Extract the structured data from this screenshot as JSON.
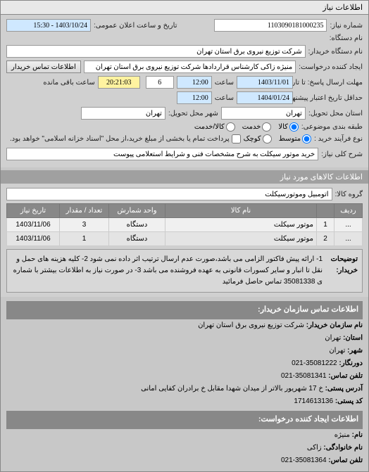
{
  "tab": {
    "title": "اطلاعات نیاز"
  },
  "form": {
    "request_no_label": "شماره نیاز:",
    "request_no": "1103090181000235",
    "announce_label": "تاریخ و ساعت اعلان عمومی:",
    "announce_value": "1403/10/24 - 15:30",
    "device_name_label": "نام دستگاه:",
    "buyer_name_label": "نام دستگاه خریدار:",
    "buyer_name": "شرکت توزیع نیروی برق استان تهران",
    "requester_label": "ایجاد کننده درخواست:",
    "requester": "منیژه زاکی کارشناس قراردادها شرکت توزیع نیروی برق استان تهران",
    "buyer_contact_btn": "اطلاعات تماس خریدار",
    "deadline_recv_label": "مهلت ارسال پاسخ: تا تاریخ:",
    "deadline_recv_date": "1403/11/01",
    "time_label": "ساعت",
    "deadline_recv_time": "12:00",
    "days_label": "",
    "days_value": "6",
    "remain_label": "ساعت باقی مانده",
    "remain_time": "20:21:03",
    "validity_label": "حداقل تاریخ اعتبار پیشنهاد: تا تاریخ:",
    "validity_date": "1404/01/24",
    "validity_time": "12:00",
    "delivery_state_label": "استان محل تحویل:",
    "delivery_state": "تهران",
    "delivery_city_label": "شهر محل تحویل:",
    "delivery_city": "تهران",
    "package_label": "طبقه بندی موضوعی:",
    "package_opts": {
      "goods": "کالا",
      "service": "خدمت",
      "both": "کالا/خدمت"
    },
    "payment_label": "نوع فرآیند خرید :",
    "payment_opts": {
      "mid": "متوسط",
      "small": "کوچک"
    },
    "payment_note_checkbox": "پرداخت تمام یا بخشی از مبلغ خرید،از محل \"اسناد خزانه اسلامی\" خواهد بود.",
    "need_title_label": "شرح کلی نیاز:",
    "need_title": "خرید موتور سیکلت به شرح مشخصات فنی و شرایط استعلامی پیوست"
  },
  "goods_section": {
    "title": "اطلاعات کالاهای مورد نیاز",
    "group_label": "گروه کالا:",
    "group_value": "اتومبیل وموتورسیکلت"
  },
  "goods_table": {
    "headers": {
      "row": "ردیف",
      "name": "نام کالا",
      "unit": "واحد شمارش",
      "qty": "تعداد / مقدار",
      "date": "تاریخ نیاز"
    },
    "rows": [
      {
        "row": "...",
        "seq": "1",
        "name": "موتور سیکلت",
        "unit": "دستگاه",
        "qty": "3",
        "date": "1403/11/06"
      },
      {
        "row": "...",
        "seq": "2",
        "name": "موتور سیکلت",
        "unit": "دستگاه",
        "qty": "1",
        "date": "1403/11/06"
      }
    ]
  },
  "buyer_desc": {
    "label": "توضیحات خریدار:",
    "text": "1- ارائه پیش فاکتور الزامی می باشد،صورت عدم ارسال ترتیب اثر داده نمی شود 2- کلیه هزینه های حمل و نقل تا انبار و سایر کسورات قانونی به عهده فروشنده می باشد 3- در صورت نیاز به اطلاعات بیشتر با شماره ی 35081338 تماس حاصل فرمائید"
  },
  "contact": {
    "section_title": "اطلاعات تماس سازمان خریدار:",
    "org_label": "نام سازمان خریدار:",
    "org": "شرکت توزیع نیروی برق استان تهران",
    "state_label": "استان:",
    "state": "تهران",
    "city_label": "شهر:",
    "city": "تهران",
    "fax_label": "دورنگار:",
    "fax": "35081222-021",
    "phone_label": "تلفن تماس:",
    "phone": "35081341-021",
    "address_label": "آدرس پستی:",
    "address": "خ 17 شهریور بالاتر از میدان شهدا مقابل خ برادران کفایی امانی",
    "zip_label": "کد پستی:",
    "zip": "1714613136",
    "creator_section": "اطلاعات ایجاد کننده درخواست:",
    "name_label": "نام:",
    "name": "منیژه",
    "lname_label": "نام خانوادگی:",
    "lname": "زاکی",
    "cphone_label": "تلفن تماس:",
    "cphone": "35081364-021"
  }
}
